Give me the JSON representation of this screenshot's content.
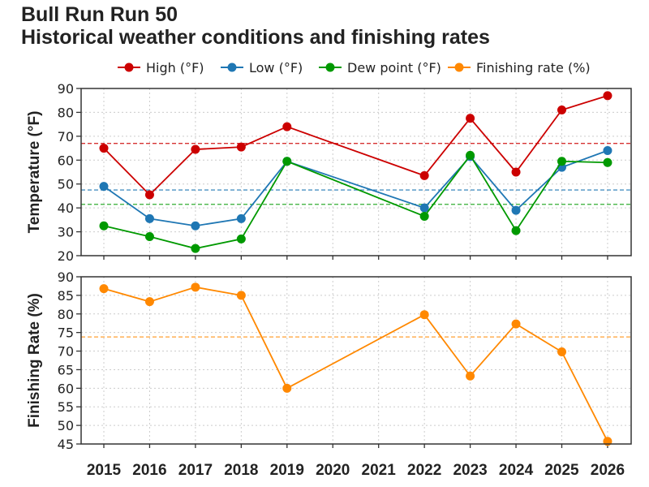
{
  "title": "Bull Run Run 50",
  "subtitle": "Historical weather conditions and finishing rates",
  "colors": {
    "high": "#cc0000",
    "low": "#1f77b4",
    "dew": "#009900",
    "finish": "#ff8800"
  },
  "chart_data": [
    {
      "type": "line",
      "ylabel": "Temperature (°F)",
      "ylim": [
        20,
        90
      ],
      "yticks": [
        20,
        30,
        40,
        50,
        60,
        70,
        80,
        90
      ],
      "grid": true,
      "legend": "top",
      "x": [
        2015,
        2016,
        2017,
        2018,
        2019,
        2022,
        2023,
        2024,
        2025,
        2026
      ],
      "series": [
        {
          "name": "High (°F)",
          "key": "high",
          "values": [
            65,
            45.5,
            64.5,
            65.5,
            74,
            53.5,
            77.5,
            55,
            81,
            87
          ]
        },
        {
          "name": "Low (°F)",
          "key": "low",
          "values": [
            49,
            35.5,
            32.5,
            35.5,
            59.5,
            40,
            61.5,
            39,
            57,
            64
          ]
        },
        {
          "name": "Dew point (°F)",
          "key": "dew",
          "values": [
            32.5,
            28,
            23,
            27,
            59.5,
            36.5,
            62,
            30.5,
            59.5,
            59
          ]
        }
      ],
      "reference_lines": [
        {
          "key": "high",
          "y": 67
        },
        {
          "key": "low",
          "y": 47.5
        },
        {
          "key": "dew",
          "y": 41.5
        }
      ]
    },
    {
      "type": "line",
      "ylabel": "Finishing Rate (%)",
      "xlabel": "",
      "ylim": [
        45,
        90
      ],
      "yticks": [
        45,
        50,
        55,
        60,
        65,
        70,
        75,
        80,
        85,
        90
      ],
      "grid": true,
      "xticks": [
        2015,
        2016,
        2017,
        2018,
        2019,
        2020,
        2021,
        2022,
        2023,
        2024,
        2025,
        2026
      ],
      "x": [
        2015,
        2016,
        2017,
        2018,
        2019,
        2022,
        2023,
        2024,
        2025,
        2026
      ],
      "series": [
        {
          "name": "Finishing rate (%)",
          "key": "finish",
          "values": [
            86.8,
            83.3,
            87.2,
            85,
            60,
            79.8,
            63.3,
            77.3,
            69.8,
            45.7
          ]
        }
      ],
      "reference_lines": [
        {
          "key": "finish",
          "y": 73.8
        }
      ]
    }
  ]
}
